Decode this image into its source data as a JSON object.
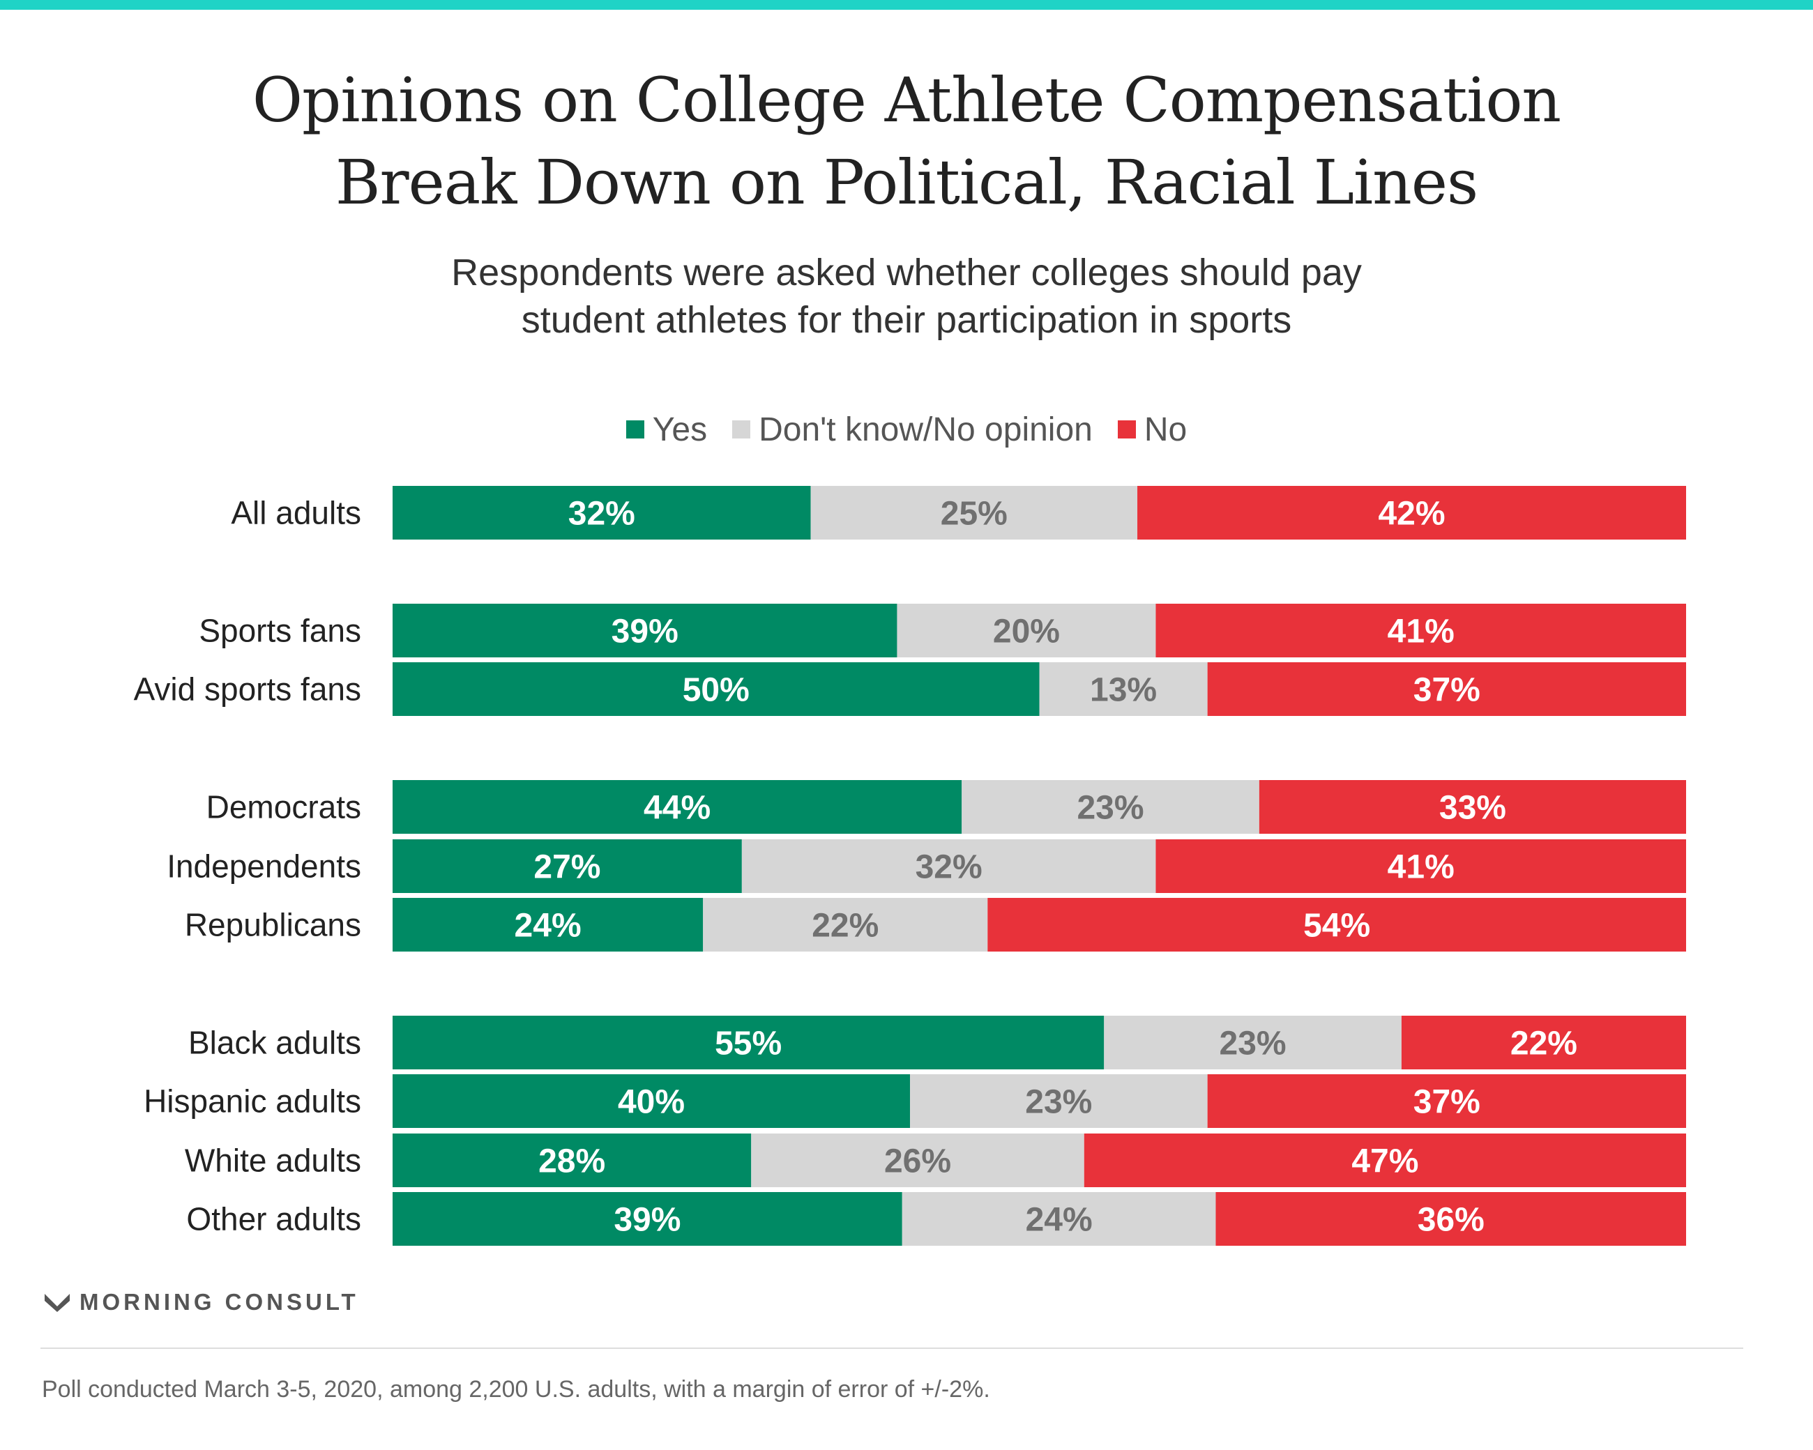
{
  "chart_data": {
    "type": "bar",
    "orientation": "horizontal",
    "stacked": true,
    "title_lines": [
      "Opinions on College Athlete Compensation",
      "Break Down on Political, Racial Lines"
    ],
    "subtitle_lines": [
      "Respondents were asked whether colleges should pay",
      "student athletes for their participation in sports"
    ],
    "categories": [
      "All adults",
      "Sports fans",
      "Avid sports fans",
      "Democrats",
      "Independents",
      "Republicans",
      "Black adults",
      "Hispanic adults",
      "White adults",
      "Other adults"
    ],
    "series": [
      {
        "name": "Yes",
        "color": "#008a64",
        "label_color": "#ffffff",
        "values": [
          32,
          39,
          50,
          44,
          27,
          24,
          55,
          40,
          28,
          39
        ]
      },
      {
        "name": "Don't know/No opinion",
        "color": "#d6d6d6",
        "label_color": "#707070",
        "values": [
          25,
          20,
          13,
          23,
          32,
          22,
          23,
          23,
          26,
          24
        ]
      },
      {
        "name": "No",
        "color": "#e8323a",
        "label_color": "#ffffff",
        "values": [
          42,
          41,
          37,
          33,
          41,
          54,
          22,
          37,
          47,
          36
        ]
      }
    ],
    "value_suffix": "%",
    "legend_position": "top-center",
    "grid": false
  },
  "branding": {
    "logo_text": "MORNING CONSULT"
  },
  "footnote": "Poll conducted March 3-5, 2020, among 2,200 U.S. adults, with a margin of error of +/-2%."
}
